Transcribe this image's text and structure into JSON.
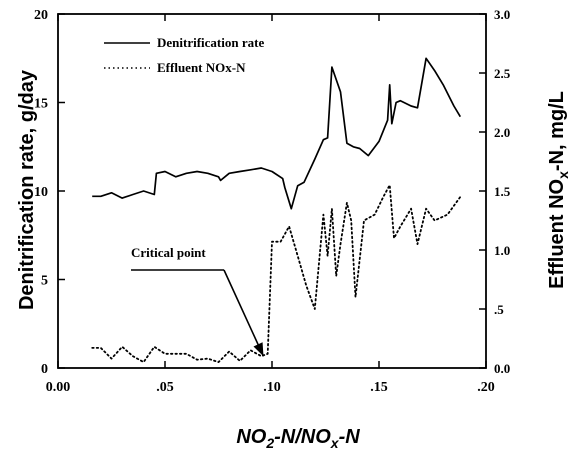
{
  "chart_data": {
    "type": "line",
    "xlabel_main": "NO",
    "xlabel_sub1": "2",
    "xlabel_mid": "-N/NO",
    "xlabel_sub2": "x",
    "xlabel_end": "-N",
    "ylabel_left": "Denitrification rate, g/day",
    "ylabel_right_main": "Effluent NO",
    "ylabel_right_sub": "x",
    "ylabel_right_end": "-N, mg/L",
    "xlim": [
      0.0,
      0.2
    ],
    "ylim_left": [
      0,
      20
    ],
    "ylim_right": [
      0.0,
      3.0
    ],
    "x_ticks": [
      "0.00",
      ".05",
      ".10",
      ".15",
      ".20"
    ],
    "y_left_ticks": [
      "0",
      "5",
      "10",
      "15",
      "20"
    ],
    "y_right_ticks": [
      "0.0",
      ".5",
      "1.0",
      "1.5",
      "2.0",
      "2.5",
      "3.0"
    ],
    "legend": {
      "placement": "top-left",
      "entries": [
        "Denitrification rate",
        "Effluent NOx-N"
      ]
    },
    "annotation": {
      "text": "Critical point",
      "x": 0.096,
      "y_right": 0.1
    },
    "series": [
      {
        "name": "Denitrification rate",
        "axis": "left",
        "style": "solid",
        "x": [
          0.016,
          0.02,
          0.025,
          0.03,
          0.035,
          0.04,
          0.045,
          0.046,
          0.05,
          0.055,
          0.06,
          0.065,
          0.07,
          0.075,
          0.076,
          0.08,
          0.085,
          0.09,
          0.095,
          0.1,
          0.105,
          0.106,
          0.109,
          0.112,
          0.115,
          0.12,
          0.124,
          0.126,
          0.128,
          0.132,
          0.135,
          0.138,
          0.141,
          0.145,
          0.15,
          0.154,
          0.155,
          0.156,
          0.158,
          0.16,
          0.165,
          0.168,
          0.172,
          0.176,
          0.18,
          0.185,
          0.188
        ],
        "values": [
          9.7,
          9.7,
          9.9,
          9.6,
          9.8,
          10.0,
          9.8,
          11.0,
          11.1,
          10.8,
          11.0,
          11.1,
          11.0,
          10.8,
          10.6,
          11.0,
          11.1,
          11.2,
          11.3,
          11.1,
          10.7,
          10.2,
          9.0,
          10.3,
          10.5,
          11.8,
          12.9,
          13.0,
          17.0,
          15.6,
          12.7,
          12.5,
          12.4,
          12.0,
          12.8,
          14.0,
          16.0,
          13.8,
          15.0,
          15.1,
          14.8,
          14.7,
          17.5,
          16.8,
          16.0,
          14.8,
          14.2
        ]
      },
      {
        "name": "Effluent NOx-N",
        "axis": "right",
        "style": "dotted",
        "x": [
          0.016,
          0.02,
          0.025,
          0.03,
          0.035,
          0.04,
          0.045,
          0.05,
          0.055,
          0.06,
          0.065,
          0.07,
          0.075,
          0.08,
          0.085,
          0.09,
          0.095,
          0.098,
          0.1,
          0.104,
          0.108,
          0.112,
          0.116,
          0.12,
          0.124,
          0.126,
          0.128,
          0.13,
          0.132,
          0.135,
          0.137,
          0.139,
          0.143,
          0.148,
          0.152,
          0.155,
          0.157,
          0.16,
          0.165,
          0.168,
          0.172,
          0.176,
          0.182,
          0.188
        ],
        "values": [
          0.17,
          0.17,
          0.08,
          0.18,
          0.1,
          0.05,
          0.18,
          0.12,
          0.12,
          0.12,
          0.07,
          0.08,
          0.05,
          0.14,
          0.06,
          0.15,
          0.1,
          0.12,
          1.07,
          1.07,
          1.2,
          0.95,
          0.7,
          0.5,
          1.3,
          0.95,
          1.35,
          0.78,
          1.05,
          1.4,
          1.25,
          0.6,
          1.25,
          1.3,
          1.45,
          1.55,
          1.1,
          1.2,
          1.35,
          1.05,
          1.35,
          1.25,
          1.3,
          1.45
        ]
      }
    ]
  }
}
